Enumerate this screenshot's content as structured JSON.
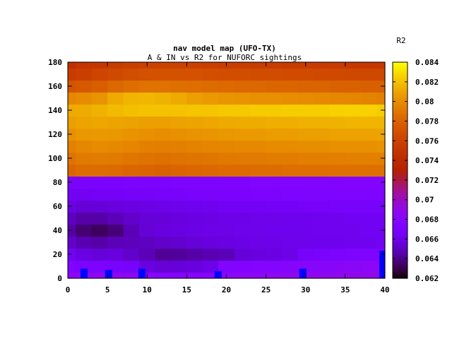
{
  "chart_data": {
    "type": "heatmap",
    "title": "nav model map (UFO-TX)",
    "subtitle": "A & IN vs R2 for NUFORC sightings",
    "xlabel": "",
    "ylabel": "",
    "colorbar_label": "R2",
    "xlim": [
      0,
      40
    ],
    "ylim": [
      0,
      180
    ],
    "x_ticks": [
      0,
      5,
      10,
      15,
      20,
      25,
      30,
      35,
      40
    ],
    "y_ticks": [
      0,
      20,
      40,
      60,
      80,
      100,
      120,
      140,
      160,
      180
    ],
    "clim": [
      0.062,
      0.084
    ],
    "colorbar_ticks": [
      0.062,
      0.064,
      0.066,
      0.068,
      0.07,
      0.072,
      0.074,
      0.076,
      0.078,
      0.08,
      0.082,
      0.084
    ],
    "colorbar_tick_labels": [
      "0.062",
      "0.064",
      "0.066",
      "0.068",
      "0.07",
      "0.072",
      "0.074",
      "0.076",
      "0.078",
      "0.08",
      "0.082",
      "0.084"
    ],
    "palette": "gnuplot-pm3d",
    "grid": false,
    "legend": "none",
    "x_values": [
      0,
      2,
      4,
      6,
      8,
      10,
      12,
      14,
      16,
      18,
      20,
      22,
      24,
      26,
      28,
      30,
      32,
      34,
      36,
      38,
      40
    ],
    "y_values": [
      0,
      10,
      20,
      30,
      40,
      50,
      60,
      70,
      80,
      90,
      100,
      110,
      120,
      130,
      140,
      150,
      160,
      170,
      180
    ],
    "z_values": [
      [
        0.0685,
        0.0688,
        0.0688,
        0.0687,
        0.0686,
        0.0683,
        0.068,
        0.068,
        0.0681,
        0.0684,
        0.0685,
        0.0686,
        0.0686,
        0.0687,
        0.0688,
        0.0689,
        0.0689,
        0.0689,
        0.069,
        0.069,
        0.069
      ],
      [
        0.0675,
        0.0672,
        0.0672,
        0.067,
        0.0668,
        0.0658,
        0.0655,
        0.0656,
        0.0657,
        0.066,
        0.0676,
        0.0677,
        0.0678,
        0.0679,
        0.068,
        0.0681,
        0.0682,
        0.0683,
        0.0684,
        0.0685,
        0.0686
      ],
      [
        0.0665,
        0.0658,
        0.0656,
        0.0657,
        0.0652,
        0.0648,
        0.0642,
        0.0643,
        0.0645,
        0.0647,
        0.0648,
        0.0656,
        0.0657,
        0.0658,
        0.066,
        0.0668,
        0.067,
        0.0672,
        0.0673,
        0.0674,
        0.0675
      ],
      [
        0.0652,
        0.0647,
        0.0645,
        0.0648,
        0.0649,
        0.065,
        0.0652,
        0.0653,
        0.0655,
        0.0657,
        0.0658,
        0.0659,
        0.066,
        0.066,
        0.0661,
        0.0661,
        0.0662,
        0.0662,
        0.0663,
        0.0663,
        0.0664
      ],
      [
        0.0645,
        0.0636,
        0.0633,
        0.0637,
        0.0648,
        0.0655,
        0.0657,
        0.0658,
        0.0659,
        0.066,
        0.066,
        0.0661,
        0.0661,
        0.0662,
        0.0662,
        0.0662,
        0.0663,
        0.0663,
        0.0663,
        0.0664,
        0.0664
      ],
      [
        0.065,
        0.0645,
        0.0645,
        0.0648,
        0.0652,
        0.0655,
        0.0656,
        0.0657,
        0.0658,
        0.0659,
        0.066,
        0.066,
        0.0661,
        0.0661,
        0.0662,
        0.0662,
        0.0663,
        0.0663,
        0.0664,
        0.0664,
        0.0665
      ],
      [
        0.0658,
        0.0655,
        0.0656,
        0.0657,
        0.0658,
        0.0659,
        0.066,
        0.0661,
        0.0662,
        0.0663,
        0.0664,
        0.0665,
        0.0665,
        0.0666,
        0.0666,
        0.0667,
        0.0667,
        0.0668,
        0.0668,
        0.0669,
        0.0669
      ],
      [
        0.0665,
        0.0665,
        0.0666,
        0.0666,
        0.0667,
        0.0667,
        0.0668,
        0.0669,
        0.067,
        0.067,
        0.0671,
        0.0671,
        0.0672,
        0.0672,
        0.0673,
        0.0673,
        0.0673,
        0.0674,
        0.0674,
        0.0674,
        0.0675
      ],
      [
        0.067,
        0.067,
        0.0671,
        0.0671,
        0.0672,
        0.0672,
        0.0672,
        0.0673,
        0.0673,
        0.0674,
        0.0674,
        0.0674,
        0.0675,
        0.0675,
        0.0675,
        0.0676,
        0.0676,
        0.0676,
        0.0677,
        0.0677,
        0.0677
      ],
      [
        0.0782,
        0.0785,
        0.0785,
        0.0784,
        0.0782,
        0.0781,
        0.078,
        0.0781,
        0.0782,
        0.0783,
        0.0784,
        0.0784,
        0.0785,
        0.0785,
        0.0786,
        0.0786,
        0.0786,
        0.0787,
        0.0787,
        0.0787,
        0.0787
      ],
      [
        0.0788,
        0.0792,
        0.0793,
        0.0792,
        0.079,
        0.0788,
        0.0787,
        0.0788,
        0.0789,
        0.079,
        0.0791,
        0.0792,
        0.0792,
        0.0793,
        0.0793,
        0.0794,
        0.0794,
        0.0794,
        0.0795,
        0.0795,
        0.0795
      ],
      [
        0.0795,
        0.0798,
        0.08,
        0.0799,
        0.0797,
        0.0795,
        0.0794,
        0.0795,
        0.0796,
        0.0797,
        0.0798,
        0.0799,
        0.0799,
        0.08,
        0.08,
        0.0801,
        0.0801,
        0.0802,
        0.0802,
        0.0802,
        0.0803
      ],
      [
        0.0802,
        0.0805,
        0.0806,
        0.0805,
        0.0803,
        0.0802,
        0.0801,
        0.0802,
        0.0803,
        0.0804,
        0.0805,
        0.0806,
        0.0806,
        0.0807,
        0.0807,
        0.0808,
        0.0808,
        0.0809,
        0.0809,
        0.0809,
        0.081
      ],
      [
        0.0808,
        0.081,
        0.0811,
        0.081,
        0.0809,
        0.0808,
        0.0808,
        0.0809,
        0.081,
        0.0811,
        0.0812,
        0.0813,
        0.0813,
        0.0814,
        0.0814,
        0.0815,
        0.0815,
        0.0815,
        0.0816,
        0.0816,
        0.0816
      ],
      [
        0.0812,
        0.0813,
        0.0815,
        0.0818,
        0.082,
        0.0821,
        0.0821,
        0.0821,
        0.0822,
        0.0822,
        0.0823,
        0.0823,
        0.0824,
        0.0824,
        0.0825,
        0.0825,
        0.0825,
        0.0826,
        0.0826,
        0.0826,
        0.0825
      ],
      [
        0.0798,
        0.08,
        0.0803,
        0.0812,
        0.0816,
        0.0817,
        0.0815,
        0.0812,
        0.0808,
        0.0806,
        0.0804,
        0.0803,
        0.0802,
        0.0802,
        0.0801,
        0.08,
        0.0799,
        0.0798,
        0.0797,
        0.0796,
        0.0795
      ],
      [
        0.0772,
        0.0775,
        0.0778,
        0.0783,
        0.0786,
        0.0788,
        0.0788,
        0.0787,
        0.0786,
        0.0785,
        0.0784,
        0.0783,
        0.0783,
        0.0782,
        0.0782,
        0.0781,
        0.0781,
        0.078,
        0.078,
        0.0779,
        0.0779
      ],
      [
        0.0755,
        0.0758,
        0.0762,
        0.0765,
        0.0768,
        0.077,
        0.0771,
        0.0771,
        0.077,
        0.0769,
        0.0768,
        0.0768,
        0.0767,
        0.0767,
        0.0766,
        0.0766,
        0.0765,
        0.0765,
        0.0764,
        0.0764,
        0.0764
      ],
      [
        0.0745,
        0.075,
        0.0752,
        0.0756,
        0.0758,
        0.076,
        0.076,
        0.076,
        0.0759,
        0.0758,
        0.0757,
        0.0757,
        0.0756,
        0.0756,
        0.0755,
        0.0755,
        0.0754,
        0.0754,
        0.0753,
        0.0753,
        0.0753
      ]
    ],
    "blue_cells": [
      {
        "x": 1.6,
        "x2": 2.5,
        "y": 0,
        "y2": 8
      },
      {
        "x": 4.7,
        "x2": 5.6,
        "y": 0,
        "y2": 7
      },
      {
        "x": 8.9,
        "x2": 9.8,
        "y": 0,
        "y2": 8
      },
      {
        "x": 18.5,
        "x2": 19.4,
        "y": 0,
        "y2": 6
      },
      {
        "x": 29.2,
        "x2": 30.1,
        "y": 0,
        "y2": 8
      },
      {
        "x": 39.3,
        "x2": 40.0,
        "y": 0,
        "y2": 23
      }
    ],
    "highlight_color": "#0000ff"
  }
}
